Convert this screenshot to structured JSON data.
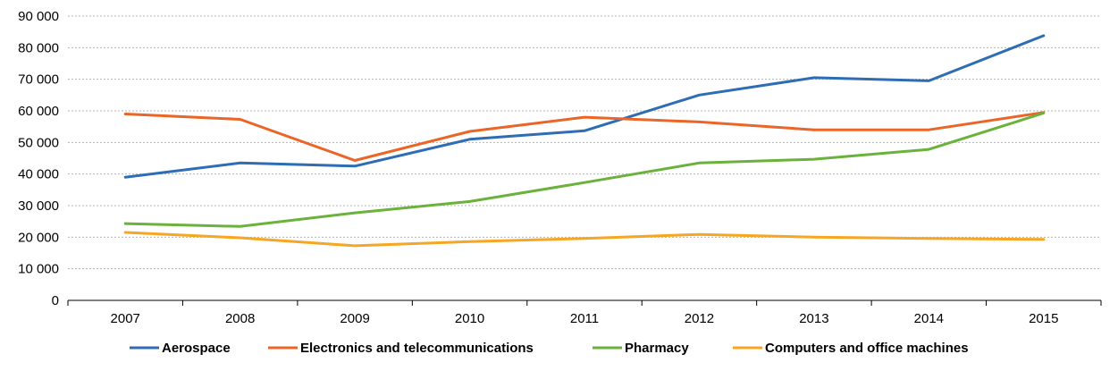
{
  "chart_data": {
    "type": "line",
    "title": "",
    "xlabel": "",
    "ylabel": "",
    "categories": [
      "2007",
      "2008",
      "2009",
      "2010",
      "2011",
      "2012",
      "2013",
      "2014",
      "2015"
    ],
    "ylim": [
      0,
      90000
    ],
    "y_ticks": [
      0,
      10000,
      20000,
      30000,
      40000,
      50000,
      60000,
      70000,
      80000,
      90000
    ],
    "y_tick_labels": [
      "0",
      "10 000",
      "20 000",
      "30 000",
      "40 000",
      "50 000",
      "60 000",
      "70 000",
      "80 000",
      "90 000"
    ],
    "grid": true,
    "legend_position": "bottom",
    "series": [
      {
        "name": "Aerospace",
        "color": "#2e6db4",
        "values": [
          39000,
          43500,
          42500,
          51000,
          53700,
          65000,
          70500,
          69500,
          83800
        ]
      },
      {
        "name": "Electronics and telecommunications",
        "color": "#ea6527",
        "values": [
          59000,
          57300,
          44300,
          53500,
          58000,
          56500,
          54000,
          54000,
          59500
        ]
      },
      {
        "name": "Pharmacy",
        "color": "#6ab23c",
        "values": [
          24300,
          23400,
          27700,
          31300,
          37300,
          43500,
          44700,
          47800,
          59300
        ]
      },
      {
        "name": "Computers and office machines",
        "color": "#f6a623",
        "values": [
          21500,
          19800,
          17300,
          18600,
          19600,
          20900,
          20000,
          19600,
          19300
        ]
      }
    ]
  }
}
